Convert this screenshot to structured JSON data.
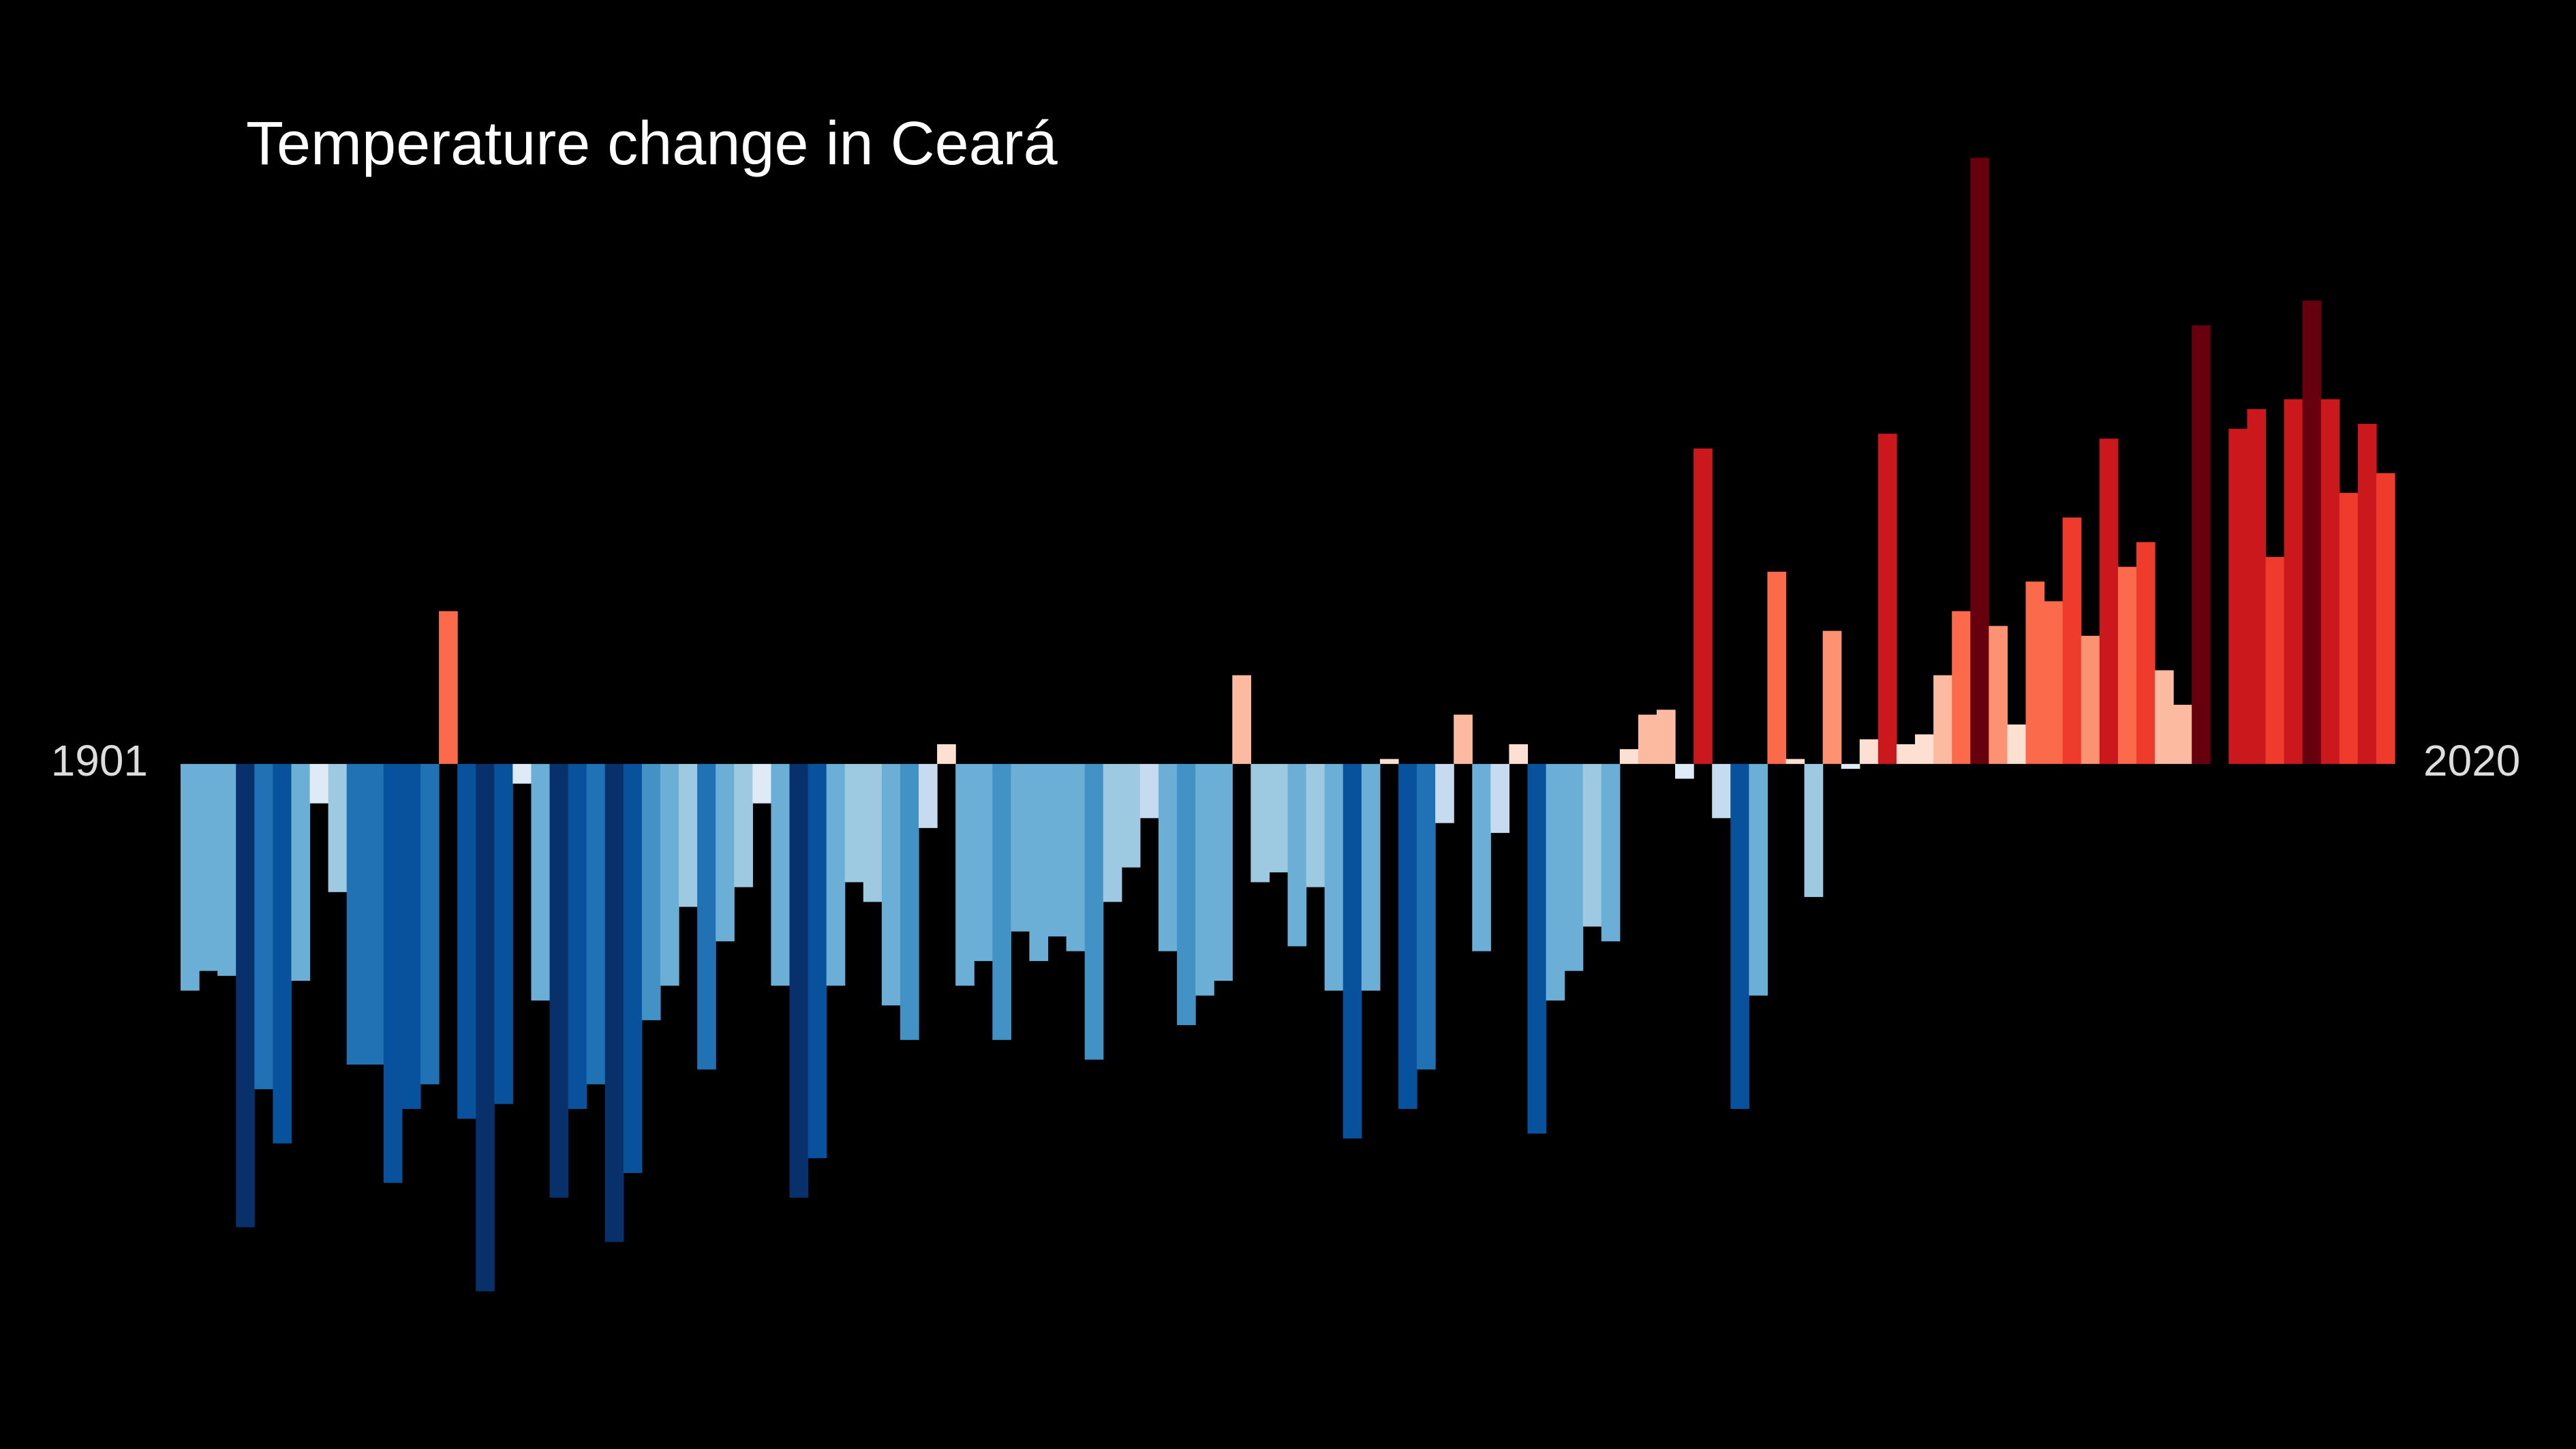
{
  "chart_data": {
    "type": "bar",
    "title": "Temperature change in Ceará",
    "categories": [
      "1901",
      null,
      null,
      null,
      null,
      null,
      null,
      null,
      null,
      null,
      null,
      null,
      null,
      null,
      null,
      null,
      null,
      null,
      null,
      null,
      null,
      null,
      null,
      null,
      null,
      null,
      null,
      null,
      null,
      null,
      null,
      null,
      null,
      null,
      null,
      null,
      null,
      null,
      null,
      null,
      null,
      null,
      null,
      null,
      null,
      null,
      null,
      null,
      null,
      null,
      null,
      null,
      null,
      null,
      null,
      null,
      null,
      null,
      null,
      null,
      null,
      null,
      null,
      null,
      null,
      null,
      null,
      null,
      null,
      null,
      null,
      null,
      null,
      null,
      null,
      null,
      null,
      null,
      null,
      null,
      null,
      null,
      null,
      null,
      null,
      null,
      null,
      null,
      null,
      null,
      null,
      null,
      null,
      null,
      null,
      null,
      null,
      null,
      null,
      null,
      null,
      null,
      null,
      null,
      null,
      null,
      null,
      null,
      null,
      null,
      null,
      null,
      null,
      null,
      null,
      null,
      null,
      null,
      null,
      "2020"
    ],
    "values": [
      -0.46,
      -0.42,
      -0.43,
      -0.94,
      -0.66,
      -0.77,
      -0.44,
      -0.08,
      -0.26,
      -0.61,
      -0.61,
      -0.85,
      -0.7,
      -0.65,
      0.31,
      -0.72,
      -1.07,
      -0.69,
      -0.04,
      -0.48,
      -0.88,
      -0.7,
      -0.65,
      -0.97,
      -0.83,
      -0.52,
      -0.45,
      -0.29,
      -0.62,
      -0.36,
      -0.25,
      -0.08,
      -0.45,
      -0.88,
      -0.8,
      -0.45,
      -0.24,
      -0.28,
      -0.49,
      -0.56,
      -0.13,
      0.04,
      -0.45,
      -0.4,
      -0.56,
      -0.34,
      -0.4,
      -0.35,
      -0.38,
      -0.6,
      -0.28,
      -0.21,
      -0.11,
      -0.38,
      -0.53,
      -0.47,
      -0.44,
      0.18,
      -0.24,
      -0.22,
      -0.37,
      -0.25,
      -0.46,
      -0.76,
      -0.46,
      0.01,
      -0.7,
      -0.62,
      -0.12,
      0.1,
      -0.38,
      -0.14,
      0.04,
      -0.75,
      -0.48,
      -0.42,
      -0.33,
      -0.36,
      0.03,
      0.1,
      0.11,
      -0.03,
      0.64,
      -0.11,
      -0.7,
      -0.47,
      0.39,
      0.01,
      -0.27,
      0.27,
      -0.01,
      0.05,
      0.67,
      0.04,
      0.06,
      0.18,
      0.31,
      1.23,
      0.28,
      0.08,
      0.37,
      0.33,
      0.5,
      0.26,
      0.66,
      0.4,
      0.45,
      0.19,
      0.12,
      0.89,
      0,
      0.68,
      0.72,
      0.42,
      0.74,
      0.94,
      0.74,
      0.55,
      0.69,
      0.59
    ],
    "colors": [
      "#6baed6",
      "#6baed6",
      "#6baed6",
      "#08306b",
      "#2171b5",
      "#08519c",
      "#6baed6",
      "#deebf7",
      "#9ecae1",
      "#2171b5",
      "#2171b5",
      "#08519c",
      "#08519c",
      "#2171b5",
      "#fb6a4a",
      "#08519c",
      "#08306b",
      "#08519c",
      "#deebf7",
      "#6baed6",
      "#08306b",
      "#08519c",
      "#2171b5",
      "#08306b",
      "#08519c",
      "#4292c6",
      "#6baed6",
      "#9ecae1",
      "#2171b5",
      "#6baed6",
      "#9ecae1",
      "#deebf7",
      "#6baed6",
      "#08306b",
      "#08519c",
      "#6baed6",
      "#9ecae1",
      "#9ecae1",
      "#6baed6",
      "#4292c6",
      "#c6dbef",
      "#fee0d2",
      "#6baed6",
      "#6baed6",
      "#4292c6",
      "#6baed6",
      "#6baed6",
      "#6baed6",
      "#6baed6",
      "#4292c6",
      "#9ecae1",
      "#9ecae1",
      "#c6dbef",
      "#6baed6",
      "#4292c6",
      "#6baed6",
      "#6baed6",
      "#fcbba1",
      "#9ecae1",
      "#9ecae1",
      "#6baed6",
      "#9ecae1",
      "#6baed6",
      "#08519c",
      "#6baed6",
      "#fee0d2",
      "#08519c",
      "#2171b5",
      "#c6dbef",
      "#fcbba1",
      "#6baed6",
      "#c6dbef",
      "#fee0d2",
      "#08519c",
      "#6baed6",
      "#6baed6",
      "#9ecae1",
      "#6baed6",
      "#fee0d2",
      "#fcbba1",
      "#fcbba1",
      "#deebf7",
      "#cb181d",
      "#c6dbef",
      "#08519c",
      "#6baed6",
      "#fb6a4a",
      "#fee0d2",
      "#9ecae1",
      "#fc9272",
      "#deebf7",
      "#fee0d2",
      "#cb181d",
      "#fee0d2",
      "#fee0d2",
      "#fcbba1",
      "#fb6a4a",
      "#67000d",
      "#fc9272",
      "#fee0d2",
      "#fb6a4a",
      "#fb6a4a",
      "#ef3b2c",
      "#fc9272",
      "#cb181d",
      "#fb6a4a",
      "#ef3b2c",
      "#fcbba1",
      "#fcbba1",
      "#67000d",
      "#fee0d2",
      "#cb181d",
      "#cb181d",
      "#ef3b2c",
      "#cb181d",
      "#67000d",
      "#cb181d",
      "#ef3b2c",
      "#cb181d",
      "#ef3b2c"
    ],
    "ylim": [
      -1.39,
      1.55
    ],
    "grid": false,
    "background": "#000000"
  }
}
